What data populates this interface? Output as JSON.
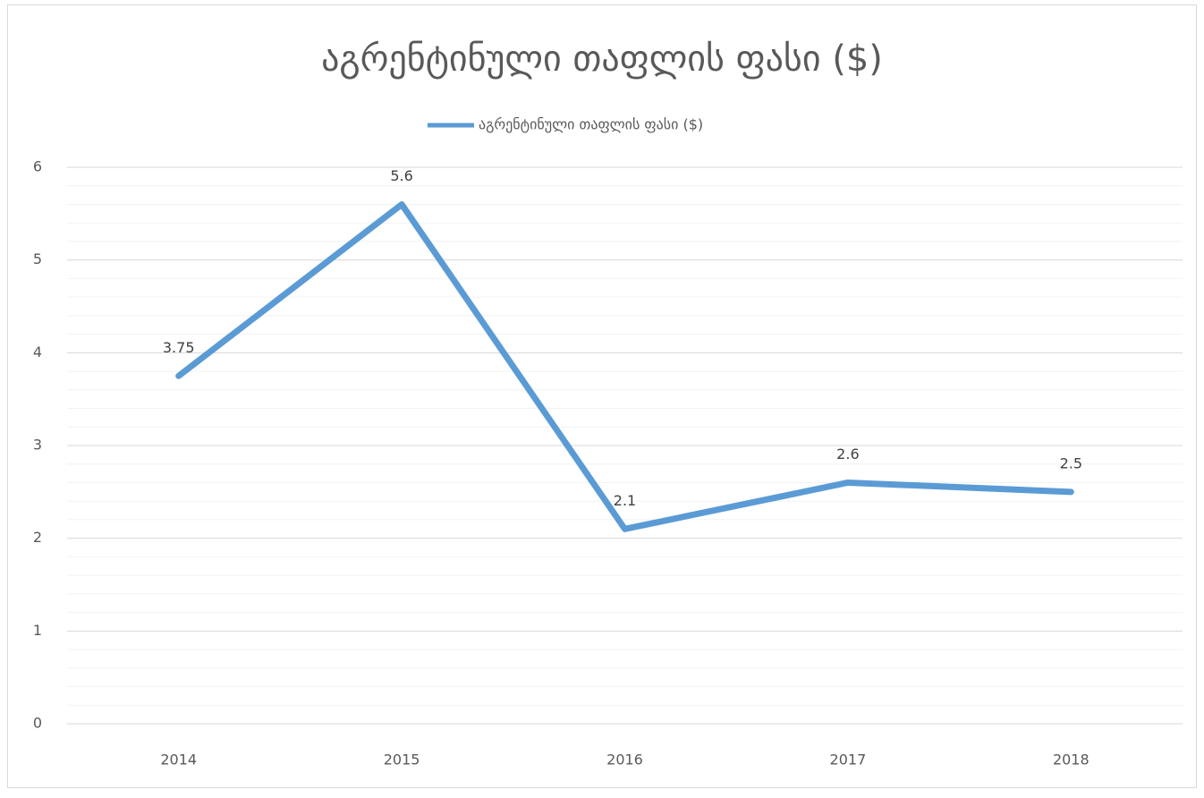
{
  "chart_data": {
    "type": "line",
    "title": "აგრენტინული თაფლის ფასი ($)",
    "categories": [
      "2014",
      "2015",
      "2016",
      "2017",
      "2018"
    ],
    "series": [
      {
        "name": "აგრენტინული თაფლის ფასი ($)",
        "color": "#5b9bd5",
        "values": [
          3.75,
          5.6,
          2.1,
          2.6,
          2.5
        ]
      }
    ],
    "ylim": [
      0,
      6
    ],
    "yticks": [
      0,
      1,
      2,
      3,
      4,
      5,
      6
    ],
    "grid": true,
    "minor_grid_step": 0.2,
    "legend": "top",
    "data_labels": true
  }
}
